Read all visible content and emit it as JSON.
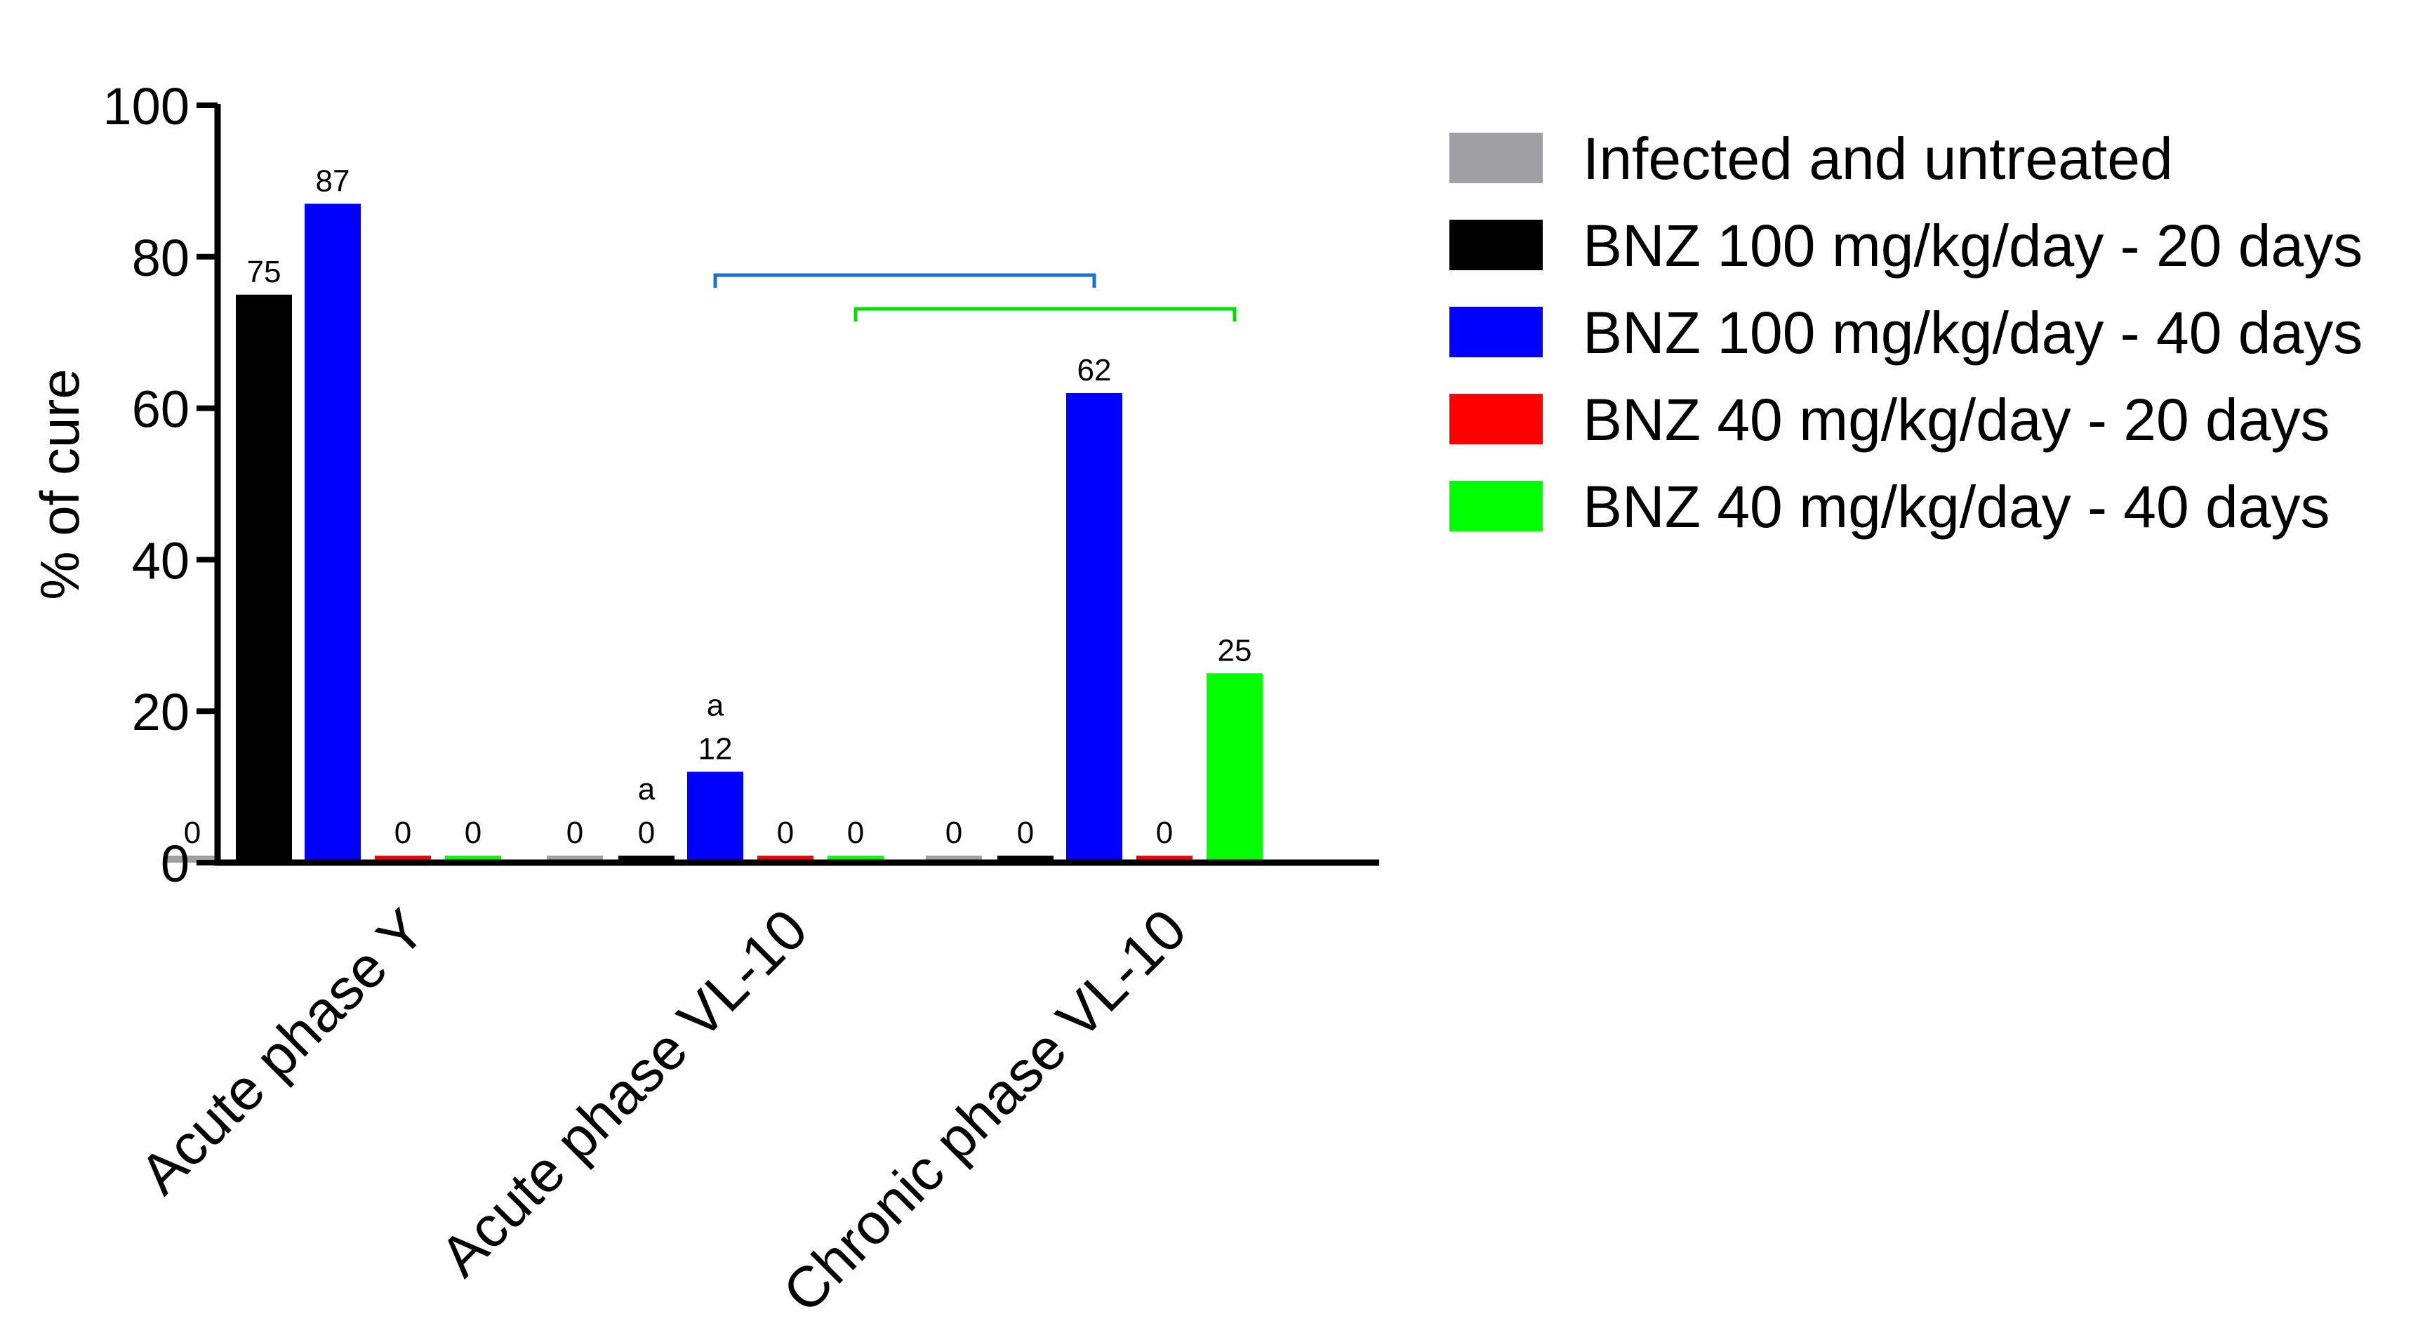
{
  "chart_data": {
    "type": "bar",
    "title": "",
    "xlabel": "",
    "ylabel": "% of cure",
    "ylim": [
      0,
      100
    ],
    "yticks": [
      0,
      20,
      40,
      60,
      80,
      100
    ],
    "categories": [
      "Acute phase Y",
      "Acute phase VL-10",
      "Chronic phase VL-10"
    ],
    "series": [
      {
        "name": "Infected and untreated",
        "color": "#a0a0a4",
        "values": [
          0,
          0,
          0
        ],
        "labels": [
          "0",
          "0",
          "0"
        ],
        "annotations": [
          "",
          "",
          ""
        ]
      },
      {
        "name": "BNZ 100 mg/kg/day - 20 days",
        "color": "#000000",
        "values": [
          75,
          0,
          0
        ],
        "labels": [
          "75",
          "0",
          "0"
        ],
        "annotations": [
          "",
          "a",
          ""
        ]
      },
      {
        "name": "BNZ 100 mg/kg/day - 40 days",
        "color": "#0000ff",
        "values": [
          87,
          12,
          62
        ],
        "labels": [
          "87",
          "12",
          "62"
        ],
        "annotations": [
          "",
          "a",
          ""
        ]
      },
      {
        "name": "BNZ 40 mg/kg/day - 20 days",
        "color": "#ff0000",
        "values": [
          0,
          0,
          0
        ],
        "labels": [
          "0",
          "0",
          "0"
        ],
        "annotations": [
          "",
          "",
          ""
        ]
      },
      {
        "name": "BNZ 40 mg/kg/day - 40 days",
        "color": "#00ff00",
        "values": [
          0,
          0,
          25
        ],
        "labels": [
          "0",
          "0",
          "25"
        ],
        "annotations": [
          "",
          "",
          ""
        ]
      }
    ],
    "comparison_brackets": [
      {
        "color": "#1f6fd0",
        "from": {
          "category": 1,
          "series": 2
        },
        "to": {
          "category": 2,
          "series": 2
        }
      },
      {
        "color": "#00dd00",
        "from": {
          "category": 1,
          "series": 4
        },
        "to": {
          "category": 2,
          "series": 4
        }
      }
    ],
    "grid": false,
    "legend_position": "right"
  }
}
